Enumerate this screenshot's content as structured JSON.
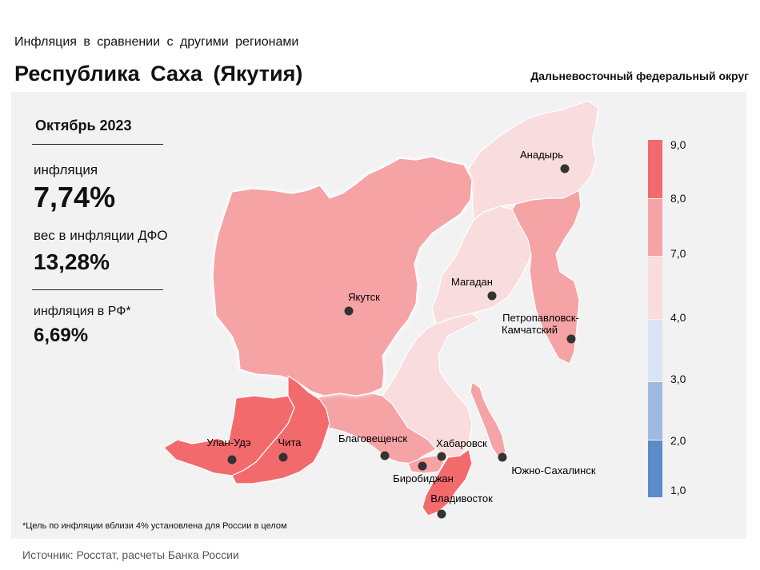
{
  "header": {
    "subtitle": "Инфляция в сравнении с другими регионами",
    "title": "Республика Саха (Якутия)",
    "district": "Дальневосточный федеральный округ"
  },
  "stats": {
    "period": "Октябрь 2023",
    "inflation_label": "инфляция",
    "inflation_value": "7,74%",
    "weight_label": "вес в инфляции ДФО",
    "weight_value": "13,28%",
    "rf_label": "инфляция в РФ*",
    "rf_value": "6,69%"
  },
  "footnote": "*Цель по инфляции вблизи 4% установлена для России в целом",
  "source": "Источник: Росстат, расчеты Банка России",
  "colors": {
    "c_over_8": "#f36a6d",
    "c_7_8": "#f6a3a5",
    "c_4_7": "#f9dcde",
    "c_3_4": "#d9e4f4",
    "c_2_3": "#9ebadf",
    "c_1_2": "#5b8cc7",
    "panel": "#f2f2f2"
  },
  "legend": {
    "ticks": [
      "9,0",
      "8,0",
      "7,0",
      "4,0",
      "3,0",
      "2,0",
      "1,0"
    ]
  },
  "map": {
    "cities": [
      {
        "name": "Анадырь"
      },
      {
        "name": "Магадан"
      },
      {
        "name": "Якутск"
      },
      {
        "name": "Петропавловск-",
        "name2": "Камчатский"
      },
      {
        "name": "Улан-Удэ"
      },
      {
        "name": "Чита"
      },
      {
        "name": "Благовещенск"
      },
      {
        "name": "Хабаровск"
      },
      {
        "name": "Биробиджан"
      },
      {
        "name": "Южно-Сахалинск"
      },
      {
        "name": "Владивосток"
      }
    ]
  }
}
